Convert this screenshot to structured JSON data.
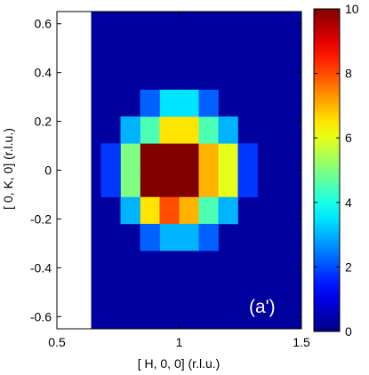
{
  "chart_data": {
    "type": "heatmap",
    "title": "",
    "xlabel": "[ H, 0, 0] (r.l.u.)",
    "ylabel": "[ 0, K, 0] (r.l.u.)",
    "panel_label": "(a')",
    "xlim": [
      0.5,
      1.5
    ],
    "ylim": [
      -0.65,
      0.65
    ],
    "data_x_range": [
      0.64,
      1.5
    ],
    "xticks": [
      0.5,
      1,
      1.5
    ],
    "xtick_labels": [
      "0.5",
      "1",
      "1.5"
    ],
    "yticks": [
      0.6,
      0.4,
      0.2,
      0,
      -0.2,
      -0.4,
      -0.6
    ],
    "ytick_labels": [
      "0.6",
      "0.4",
      "0.2",
      "0",
      "-0.2",
      "-0.4",
      "-0.6"
    ],
    "colorbar": {
      "colormap": "jet",
      "range": [
        0,
        10
      ],
      "ticks": [
        0,
        2,
        4,
        6,
        8,
        10
      ],
      "tick_labels": [
        "0",
        "2",
        "4",
        "6",
        "8",
        "10"
      ]
    },
    "background_value": 0.3,
    "peak": {
      "center_h": 1.0,
      "center_k": 0.0,
      "max": 12
    },
    "cells": [
      {
        "h": 0.88,
        "k": 0.055,
        "v": 10.5
      },
      {
        "h": 0.96,
        "k": 0.055,
        "v": 12
      },
      {
        "h": 1.04,
        "k": 0.055,
        "v": 12
      },
      {
        "h": 1.12,
        "k": 0.055,
        "v": 7
      },
      {
        "h": 0.88,
        "k": -0.055,
        "v": 10.5
      },
      {
        "h": 0.96,
        "k": -0.055,
        "v": 12
      },
      {
        "h": 1.04,
        "k": -0.055,
        "v": 12
      },
      {
        "h": 1.12,
        "k": -0.055,
        "v": 7
      },
      {
        "h": 0.88,
        "k": 0.165,
        "v": 4.5
      },
      {
        "h": 0.96,
        "k": 0.165,
        "v": 6.5
      },
      {
        "h": 1.04,
        "k": 0.165,
        "v": 6.5
      },
      {
        "h": 1.12,
        "k": 0.165,
        "v": 4.5
      },
      {
        "h": 0.88,
        "k": -0.165,
        "v": 6.5
      },
      {
        "h": 0.96,
        "k": -0.165,
        "v": 8
      },
      {
        "h": 1.04,
        "k": -0.165,
        "v": 7
      },
      {
        "h": 1.12,
        "k": -0.165,
        "v": 4.5
      },
      {
        "h": 0.8,
        "k": 0.055,
        "v": 5
      },
      {
        "h": 0.8,
        "k": -0.055,
        "v": 5
      },
      {
        "h": 1.2,
        "k": 0.055,
        "v": 6
      },
      {
        "h": 1.2,
        "k": -0.055,
        "v": 6
      },
      {
        "h": 0.8,
        "k": 0.165,
        "v": 3
      },
      {
        "h": 0.8,
        "k": -0.165,
        "v": 3
      },
      {
        "h": 1.2,
        "k": 0.165,
        "v": 3
      },
      {
        "h": 1.2,
        "k": -0.165,
        "v": 3
      },
      {
        "h": 0.96,
        "k": 0.275,
        "v": 3.5
      },
      {
        "h": 1.04,
        "k": 0.275,
        "v": 3.5
      },
      {
        "h": 0.88,
        "k": 0.275,
        "v": 2.2
      },
      {
        "h": 1.12,
        "k": 0.275,
        "v": 2.2
      },
      {
        "h": 0.96,
        "k": -0.275,
        "v": 3
      },
      {
        "h": 1.04,
        "k": -0.275,
        "v": 3
      },
      {
        "h": 0.88,
        "k": -0.275,
        "v": 2.2
      },
      {
        "h": 1.12,
        "k": -0.275,
        "v": 2.2
      },
      {
        "h": 0.72,
        "k": 0.055,
        "v": 1.8
      },
      {
        "h": 0.72,
        "k": -0.055,
        "v": 1.8
      },
      {
        "h": 1.28,
        "k": 0.055,
        "v": 1.8
      },
      {
        "h": 1.28,
        "k": -0.055,
        "v": 1.8
      }
    ]
  }
}
